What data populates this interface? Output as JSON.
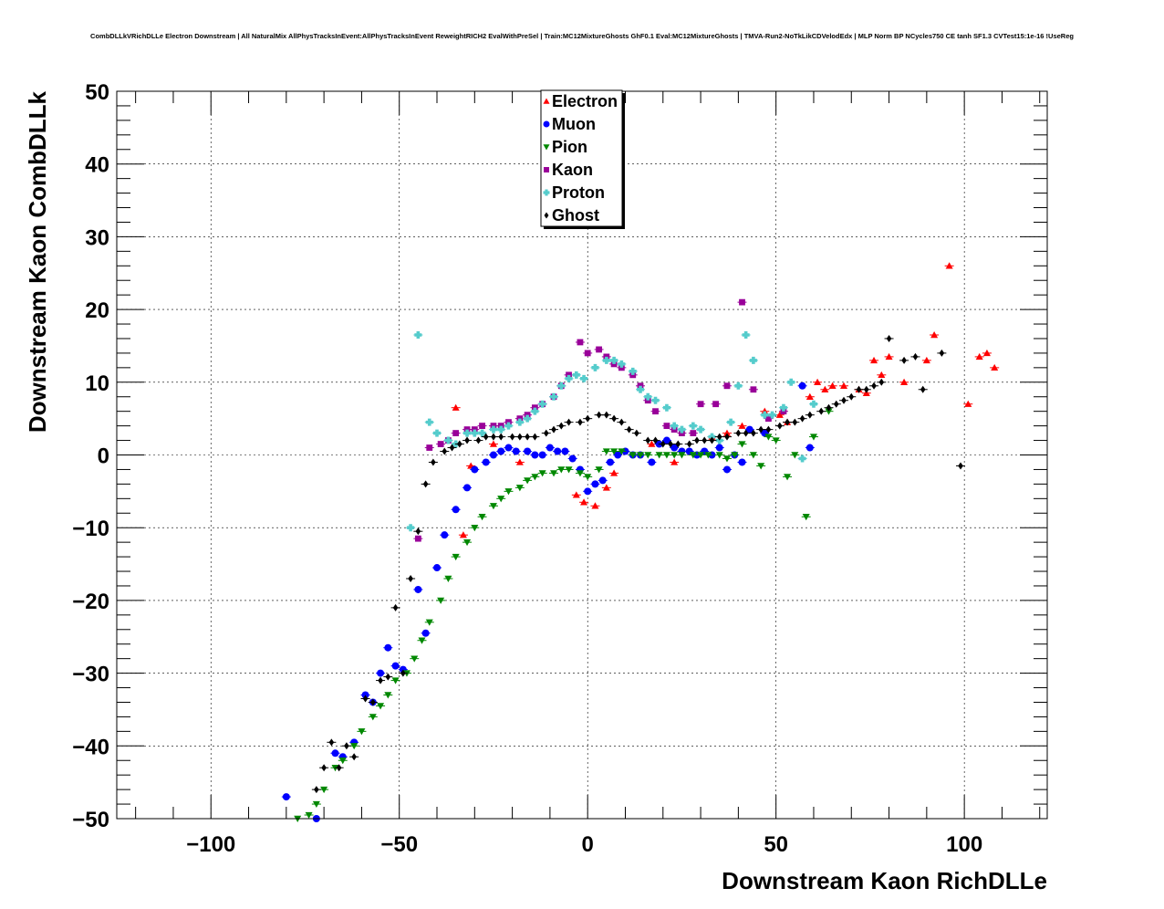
{
  "chart_data": {
    "type": "scatter",
    "title": "CombDLLkVRichDLLe Electron Downstream | All NaturalMix AllPhysTracksInEvent:AllPhysTracksInEvent ReweightRICH2 EvalWithPreSel | Train:MC12MixtureGhosts GhF0.1 Eval:MC12MixtureGhosts | TMVA-Run2-NoTkLikCDVelodEdx | MLP Norm BP NCycles750 CE tanh SF1.3 CVTest15:1e-16 !UseReg",
    "xlabel": "Downstream Kaon RichDLLe",
    "ylabel": "Downstream Kaon CombDLLk",
    "xlim": [
      -125,
      122
    ],
    "ylim": [
      -50,
      50
    ],
    "xticks": [
      -100,
      -50,
      0,
      50,
      100
    ],
    "yticks": [
      -50,
      -40,
      -30,
      -20,
      -10,
      0,
      10,
      20,
      30,
      40,
      50
    ],
    "xtick_labels": [
      "−100",
      "−50",
      "0",
      "50",
      "100"
    ],
    "ytick_labels": [
      "−50",
      "−40",
      "−30",
      "−20",
      "−10",
      "0",
      "10",
      "20",
      "30",
      "40",
      "50"
    ],
    "grid": true,
    "legend_position": "top-center",
    "series": [
      {
        "name": "Electron",
        "color": "#ff0000",
        "marker": "triangle-up",
        "points": [
          [
            -35,
            6.5
          ],
          [
            -33,
            -11
          ],
          [
            -31,
            -1.5
          ],
          [
            -25,
            1.5
          ],
          [
            -18,
            -1
          ],
          [
            -3,
            -5.5
          ],
          [
            -1,
            -6.5
          ],
          [
            2,
            -7
          ],
          [
            5,
            -4.5
          ],
          [
            7,
            -2.5
          ],
          [
            17,
            1.5
          ],
          [
            23,
            -1
          ],
          [
            33,
            2.5
          ],
          [
            37,
            3
          ],
          [
            41,
            4
          ],
          [
            47,
            6
          ],
          [
            51,
            5.5
          ],
          [
            53,
            4.5
          ],
          [
            59,
            8
          ],
          [
            61,
            10
          ],
          [
            63,
            9
          ],
          [
            65,
            9.5
          ],
          [
            68,
            9.5
          ],
          [
            72,
            9
          ],
          [
            74,
            8.5
          ],
          [
            76,
            13
          ],
          [
            78,
            11
          ],
          [
            80,
            13.5
          ],
          [
            84,
            10
          ],
          [
            90,
            13
          ],
          [
            92,
            16.5
          ],
          [
            96,
            26
          ],
          [
            101,
            7
          ],
          [
            104,
            13.5
          ],
          [
            106,
            14
          ],
          [
            108,
            12
          ]
        ]
      },
      {
        "name": "Muon",
        "color": "#0000ff",
        "marker": "circle",
        "points": [
          [
            -80,
            -47
          ],
          [
            -72,
            -50
          ],
          [
            -67,
            -41
          ],
          [
            -65,
            -41.5
          ],
          [
            -62,
            -39.5
          ],
          [
            -59,
            -33
          ],
          [
            -57,
            -34
          ],
          [
            -55,
            -30
          ],
          [
            -53,
            -26.5
          ],
          [
            -51,
            -29
          ],
          [
            -49,
            -29.5
          ],
          [
            -45,
            -18.5
          ],
          [
            -43,
            -24.5
          ],
          [
            -40,
            -15.5
          ],
          [
            -38,
            -11
          ],
          [
            -35,
            -7.5
          ],
          [
            -32,
            -4.5
          ],
          [
            -30,
            -2
          ],
          [
            -27,
            -1
          ],
          [
            -25,
            0
          ],
          [
            -23,
            0.5
          ],
          [
            -21,
            1
          ],
          [
            -19,
            0.5
          ],
          [
            -16,
            0.5
          ],
          [
            -14,
            0
          ],
          [
            -12,
            0
          ],
          [
            -10,
            1
          ],
          [
            -8,
            0.5
          ],
          [
            -6,
            0.5
          ],
          [
            -4,
            -0.5
          ],
          [
            -2,
            -2
          ],
          [
            0,
            -5
          ],
          [
            2,
            -4
          ],
          [
            4,
            -3.5
          ],
          [
            6,
            -1
          ],
          [
            8,
            0
          ],
          [
            10,
            0.5
          ],
          [
            12,
            0
          ],
          [
            14,
            0
          ],
          [
            17,
            -1
          ],
          [
            19,
            1.5
          ],
          [
            21,
            2
          ],
          [
            23,
            1
          ],
          [
            25,
            0.5
          ],
          [
            27,
            0.5
          ],
          [
            29,
            0
          ],
          [
            31,
            0.5
          ],
          [
            33,
            0
          ],
          [
            35,
            1
          ],
          [
            37,
            -2
          ],
          [
            39,
            0
          ],
          [
            41,
            -1
          ],
          [
            43,
            3.5
          ],
          [
            47,
            3
          ],
          [
            57,
            9.5
          ],
          [
            59,
            1
          ]
        ]
      },
      {
        "name": "Pion",
        "color": "#008800",
        "marker": "triangle-down",
        "points": [
          [
            -77,
            -50
          ],
          [
            -74,
            -49.5
          ],
          [
            -72,
            -48
          ],
          [
            -70,
            -46
          ],
          [
            -67,
            -43
          ],
          [
            -65,
            -42
          ],
          [
            -62,
            -40
          ],
          [
            -60,
            -38
          ],
          [
            -57,
            -36
          ],
          [
            -55,
            -34.5
          ],
          [
            -53,
            -33
          ],
          [
            -51,
            -31
          ],
          [
            -48,
            -30
          ],
          [
            -46,
            -28
          ],
          [
            -44,
            -25.5
          ],
          [
            -42,
            -23
          ],
          [
            -39,
            -20
          ],
          [
            -37,
            -17
          ],
          [
            -35,
            -14
          ],
          [
            -32,
            -12
          ],
          [
            -30,
            -10
          ],
          [
            -28,
            -8.5
          ],
          [
            -25,
            -7
          ],
          [
            -23,
            -6
          ],
          [
            -21,
            -5
          ],
          [
            -18,
            -4.5
          ],
          [
            -16,
            -3.5
          ],
          [
            -14,
            -3
          ],
          [
            -12,
            -2.5
          ],
          [
            -9,
            -2.5
          ],
          [
            -7,
            -2
          ],
          [
            -5,
            -2
          ],
          [
            -2,
            -2.5
          ],
          [
            0,
            -3
          ],
          [
            3,
            -2
          ],
          [
            5,
            0.5
          ],
          [
            7,
            0.5
          ],
          [
            9,
            0.5
          ],
          [
            12,
            0
          ],
          [
            14,
            0
          ],
          [
            16,
            0
          ],
          [
            19,
            0
          ],
          [
            21,
            0
          ],
          [
            23,
            0
          ],
          [
            25,
            0
          ],
          [
            28,
            0
          ],
          [
            30,
            0
          ],
          [
            32,
            0
          ],
          [
            35,
            0
          ],
          [
            37,
            -0.5
          ],
          [
            39,
            0
          ],
          [
            41,
            1.5
          ],
          [
            44,
            0
          ],
          [
            46,
            -1.5
          ],
          [
            48,
            2.5
          ],
          [
            50,
            2
          ],
          [
            53,
            -3
          ],
          [
            55,
            0
          ],
          [
            58,
            -8.5
          ],
          [
            60,
            2.5
          ],
          [
            64,
            6
          ]
        ]
      },
      {
        "name": "Kaon",
        "color": "#990099",
        "marker": "square",
        "points": [
          [
            -45,
            -11.5
          ],
          [
            -42,
            1
          ],
          [
            -39,
            1.5
          ],
          [
            -37,
            2
          ],
          [
            -35,
            3
          ],
          [
            -32,
            3.5
          ],
          [
            -30,
            3.5
          ],
          [
            -28,
            4
          ],
          [
            -25,
            4
          ],
          [
            -23,
            4
          ],
          [
            -21,
            4.5
          ],
          [
            -18,
            5
          ],
          [
            -16,
            5.5
          ],
          [
            -14,
            6.5
          ],
          [
            -12,
            7
          ],
          [
            -9,
            8
          ],
          [
            -7,
            9.5
          ],
          [
            -5,
            11
          ],
          [
            -2,
            15.5
          ],
          [
            0,
            14
          ],
          [
            3,
            14.5
          ],
          [
            5,
            13.5
          ],
          [
            7,
            12.5
          ],
          [
            9,
            12
          ],
          [
            12,
            11
          ],
          [
            14,
            9.5
          ],
          [
            16,
            7.5
          ],
          [
            18,
            6
          ],
          [
            21,
            4
          ],
          [
            23,
            3.5
          ],
          [
            25,
            3
          ],
          [
            28,
            3
          ],
          [
            30,
            7
          ],
          [
            34,
            7
          ],
          [
            37,
            9.5
          ],
          [
            41,
            21
          ],
          [
            44,
            9
          ],
          [
            48,
            5
          ],
          [
            52,
            6
          ]
        ]
      },
      {
        "name": "Proton",
        "color": "#55cccc",
        "marker": "cross",
        "points": [
          [
            -47,
            -10
          ],
          [
            -45,
            16.5
          ],
          [
            -42,
            4.5
          ],
          [
            -40,
            3
          ],
          [
            -37,
            2
          ],
          [
            -35,
            1.5
          ],
          [
            -32,
            3
          ],
          [
            -30,
            3
          ],
          [
            -28,
            3
          ],
          [
            -25,
            3.5
          ],
          [
            -23,
            3.5
          ],
          [
            -21,
            4
          ],
          [
            -18,
            4.5
          ],
          [
            -16,
            5
          ],
          [
            -14,
            6
          ],
          [
            -12,
            7
          ],
          [
            -9,
            8
          ],
          [
            -7,
            9.5
          ],
          [
            -5,
            10.5
          ],
          [
            -3,
            11
          ],
          [
            -1,
            10.5
          ],
          [
            2,
            12
          ],
          [
            5,
            13
          ],
          [
            7,
            13
          ],
          [
            9,
            12.5
          ],
          [
            12,
            11.5
          ],
          [
            14,
            9
          ],
          [
            16,
            8
          ],
          [
            18,
            7.5
          ],
          [
            21,
            6.5
          ],
          [
            23,
            4
          ],
          [
            25,
            3.5
          ],
          [
            28,
            4
          ],
          [
            30,
            3.5
          ],
          [
            33,
            2.5
          ],
          [
            35,
            2
          ],
          [
            38,
            4.5
          ],
          [
            40,
            9.5
          ],
          [
            42,
            16.5
          ],
          [
            44,
            13
          ],
          [
            47,
            5.5
          ],
          [
            49,
            5.5
          ],
          [
            52,
            6.5
          ],
          [
            54,
            10
          ],
          [
            57,
            -0.5
          ],
          [
            60,
            7
          ]
        ]
      },
      {
        "name": "Ghost",
        "color": "#000000",
        "marker": "diamond",
        "points": [
          [
            -72,
            -46
          ],
          [
            -70,
            -43
          ],
          [
            -68,
            -39.5
          ],
          [
            -66,
            -43
          ],
          [
            -64,
            -40
          ],
          [
            -62,
            -41.5
          ],
          [
            -59,
            -33.5
          ],
          [
            -57,
            -34
          ],
          [
            -55,
            -31
          ],
          [
            -53,
            -30.5
          ],
          [
            -51,
            -21
          ],
          [
            -49,
            -30
          ],
          [
            -47,
            -17
          ],
          [
            -45,
            -10.5
          ],
          [
            -43,
            -4
          ],
          [
            -41,
            -1
          ],
          [
            -38,
            0.5
          ],
          [
            -36,
            1
          ],
          [
            -34,
            1.5
          ],
          [
            -32,
            2
          ],
          [
            -29,
            2
          ],
          [
            -27,
            2.5
          ],
          [
            -25,
            2.5
          ],
          [
            -23,
            2.5
          ],
          [
            -20,
            2.5
          ],
          [
            -18,
            2.5
          ],
          [
            -16,
            2.5
          ],
          [
            -14,
            2.5
          ],
          [
            -11,
            3
          ],
          [
            -9,
            3.5
          ],
          [
            -7,
            4
          ],
          [
            -5,
            4.5
          ],
          [
            -2,
            4.5
          ],
          [
            0,
            5
          ],
          [
            3,
            5.5
          ],
          [
            5,
            5.5
          ],
          [
            7,
            5
          ],
          [
            9,
            4.5
          ],
          [
            11,
            3.5
          ],
          [
            13,
            3
          ],
          [
            16,
            2
          ],
          [
            18,
            2
          ],
          [
            20,
            1.5
          ],
          [
            22,
            1.5
          ],
          [
            24,
            1.5
          ],
          [
            27,
            1.5
          ],
          [
            29,
            2
          ],
          [
            31,
            2
          ],
          [
            33,
            2
          ],
          [
            35,
            2.5
          ],
          [
            37,
            2.5
          ],
          [
            40,
            3
          ],
          [
            42,
            3
          ],
          [
            44,
            3
          ],
          [
            46,
            3.5
          ],
          [
            48,
            3.5
          ],
          [
            51,
            4
          ],
          [
            53,
            4.5
          ],
          [
            55,
            4.5
          ],
          [
            57,
            5
          ],
          [
            59,
            5.5
          ],
          [
            62,
            6
          ],
          [
            64,
            6.5
          ],
          [
            66,
            7
          ],
          [
            68,
            7.5
          ],
          [
            70,
            8
          ],
          [
            72,
            9
          ],
          [
            74,
            9
          ],
          [
            76,
            9.5
          ],
          [
            78,
            10
          ],
          [
            80,
            16
          ],
          [
            84,
            13
          ],
          [
            87,
            13.5
          ],
          [
            89,
            9
          ],
          [
            94,
            14
          ],
          [
            99,
            -1.5
          ]
        ]
      }
    ]
  }
}
